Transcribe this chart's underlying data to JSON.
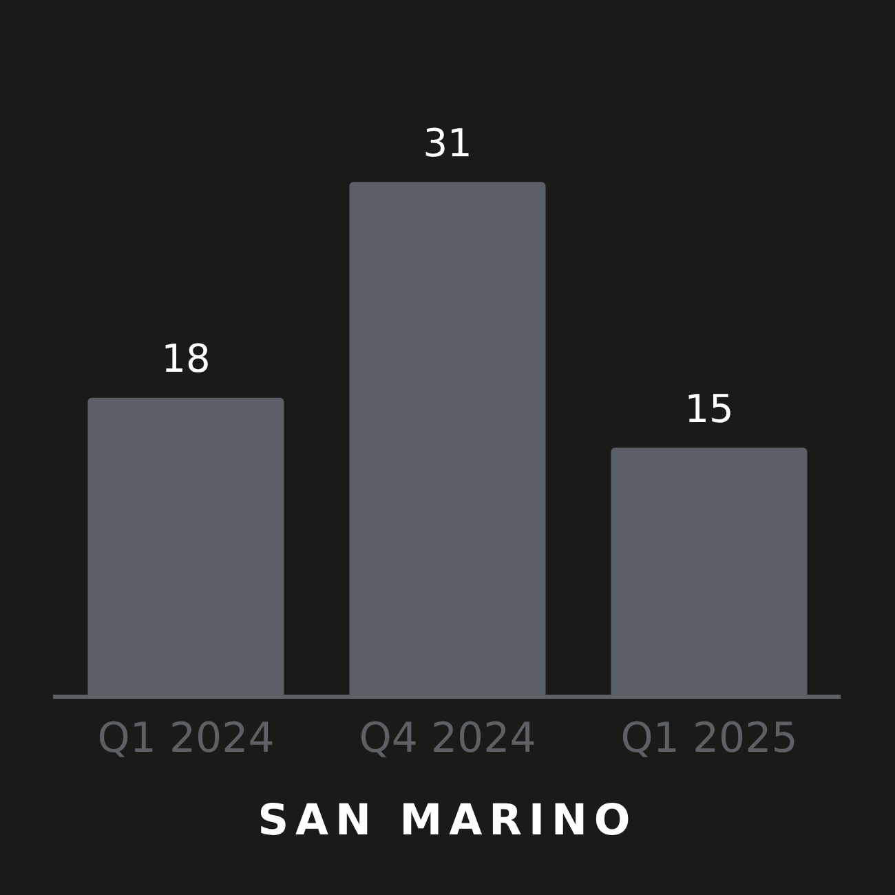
{
  "chart_data": {
    "type": "bar",
    "title": "SAN MARINO",
    "categories": [
      "Q1 2024",
      "Q4 2024",
      "Q1 2025"
    ],
    "values": [
      18,
      31,
      15
    ],
    "color": "#5a6066",
    "data_labels": true,
    "legend": false
  }
}
